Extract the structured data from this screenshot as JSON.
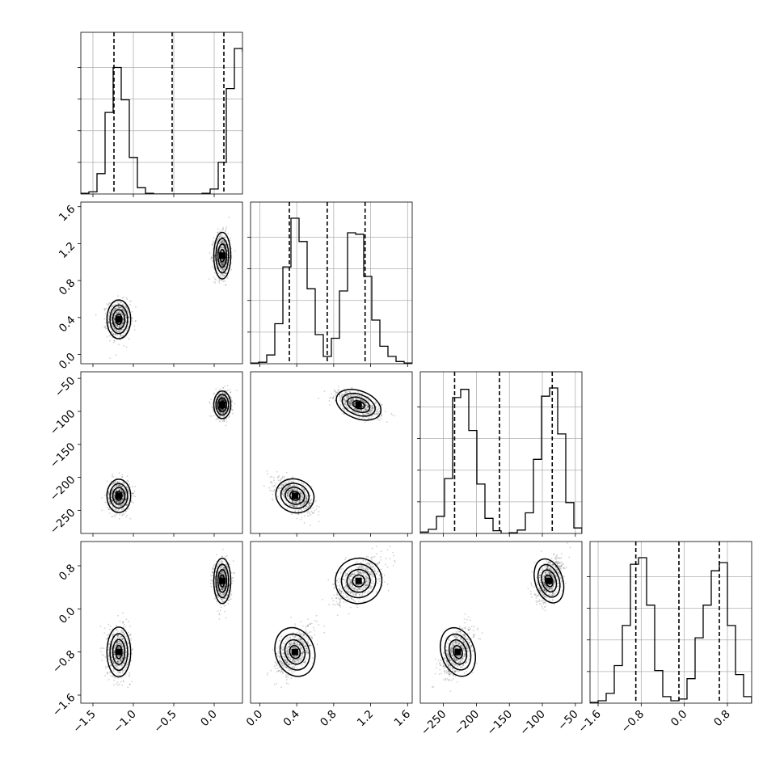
{
  "figure": {
    "title": "",
    "type": "corner-plot"
  },
  "chart_data": {
    "type": "corner",
    "parameters": [
      {
        "name": "",
        "range": [
          -1.65,
          0.35
        ],
        "ticks": [
          -1.5,
          -1.0,
          -0.5,
          0.0
        ],
        "tick_labels": [
          "−1.5",
          "−1.0",
          "−0.5",
          "0.0"
        ]
      },
      {
        "name": "",
        "range": [
          -0.1,
          1.65
        ],
        "ticks": [
          0.0,
          0.4,
          0.8,
          1.2,
          1.6
        ],
        "tick_labels": [
          "0.0",
          "0.4",
          "0.8",
          "1.2",
          "1.6"
        ]
      },
      {
        "name": "",
        "range": [
          -285,
          -40
        ],
        "ticks": [
          -250,
          -200,
          -150,
          -100,
          -50
        ],
        "tick_labels": [
          "−250",
          "−200",
          "−150",
          "−100",
          "−50"
        ]
      },
      {
        "name": "",
        "range": [
          -1.75,
          1.25
        ],
        "ticks": [
          -1.6,
          -0.8,
          0.0,
          0.8
        ],
        "tick_labels": [
          "−1.6",
          "−0.8",
          "0.0",
          "0.8"
        ]
      }
    ],
    "modes": [
      {
        "center": [
          -1.18,
          0.38,
          -228,
          -0.8
        ],
        "spread": [
          0.07,
          0.1,
          12,
          0.22
        ]
      },
      {
        "center": [
          0.1,
          1.07,
          -90,
          0.52
        ],
        "spread": [
          0.05,
          0.12,
          10,
          0.2
        ]
      }
    ],
    "quantiles": [
      [
        -1.24,
        -0.52,
        0.12
      ],
      [
        0.32,
        0.73,
        1.14
      ],
      [
        -233,
        -165,
        -85
      ],
      [
        -0.9,
        -0.1,
        0.65
      ]
    ],
    "histograms": [
      {
        "edges_start": -1.65,
        "bin_width": 0.1,
        "counts": [
          1,
          3,
          29,
          116,
          180,
          134,
          52,
          9,
          1,
          0,
          0,
          0,
          0,
          0,
          0,
          1,
          7,
          45,
          150,
          207,
          203,
          85,
          9
        ]
      },
      {
        "edges_start": -0.1,
        "bin_width": 0.0875,
        "counts": [
          1,
          2,
          12,
          55,
          133,
          200,
          168,
          103,
          40,
          10,
          35,
          100,
          180,
          178,
          120,
          60,
          24,
          10,
          3,
          1
        ]
      },
      {
        "edges_start": -285,
        "bin_width": 12.25,
        "counts": [
          2,
          6,
          25,
          80,
          198,
          210,
          150,
          72,
          22,
          4,
          0,
          1,
          5,
          30,
          108,
          200,
          212,
          145,
          45,
          8
        ]
      },
      {
        "edges_start": -1.75,
        "bin_width": 0.15,
        "counts": [
          1,
          3,
          12,
          46,
          95,
          170,
          178,
          120,
          40,
          8,
          3,
          5,
          30,
          80,
          120,
          162,
          172,
          95,
          35,
          8
        ]
      }
    ],
    "grid_lines": {
      "major": true
    }
  },
  "style": {
    "ink": "#000000",
    "grid": "#b0b0b0",
    "point": "#000000"
  }
}
